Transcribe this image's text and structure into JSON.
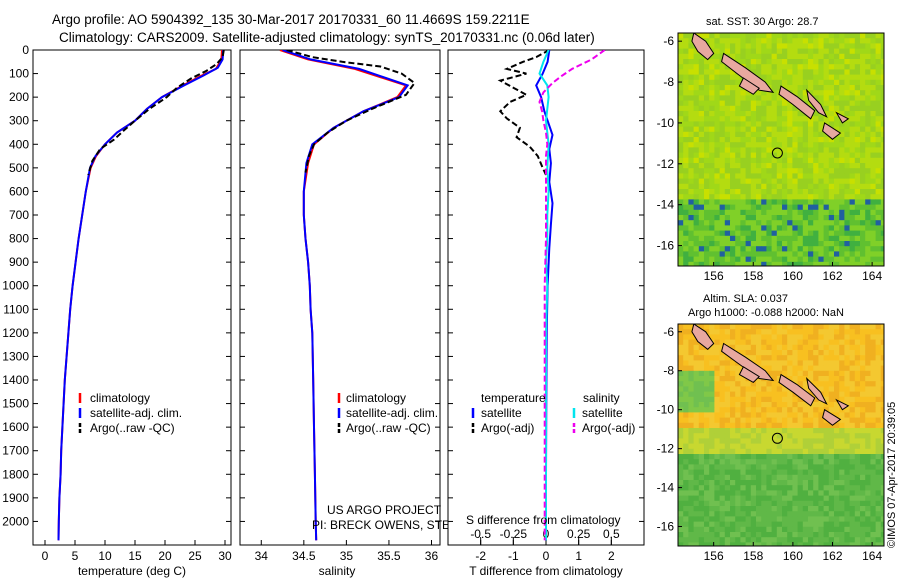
{
  "header": {
    "title_line1": "Argo profile: AO 5904392_135 30-Mar-2017 20170331_60 11.4669S 159.2211E",
    "title_line2": "Climatology: CARS2009. Satellite-adjusted climatology: synTS_20170331.nc (0.06d later)"
  },
  "colors": {
    "climatology": "#ff0000",
    "satellite": "#0000ff",
    "argo": "#000000",
    "sal_satellite": "#00e5ee",
    "sal_argo": "#ee00ee",
    "land": "#e8a8a0"
  },
  "chart_data": [
    {
      "type": "line",
      "id": "temperature",
      "xlabel": "temperature (deg C)",
      "ylabel": "",
      "xlim": [
        -2,
        31
      ],
      "ylim": [
        2100,
        0
      ],
      "xticks": [
        0,
        5,
        10,
        15,
        20,
        25,
        30
      ],
      "yticks": [
        0,
        100,
        200,
        300,
        400,
        500,
        600,
        700,
        800,
        900,
        1000,
        1100,
        1200,
        1300,
        1400,
        1500,
        1600,
        1700,
        1800,
        1900,
        2000
      ],
      "legend": [
        "climatology",
        "satellite-adj. clim.",
        "Argo(..raw -QC)"
      ],
      "series": [
        {
          "name": "climatology",
          "color": "#ff0000",
          "dash": false,
          "points": [
            [
              29.5,
              0
            ],
            [
              29.4,
              40
            ],
            [
              28.5,
              80
            ],
            [
              26,
              110
            ],
            [
              23,
              150
            ],
            [
              19.5,
              200
            ],
            [
              17,
              250
            ],
            [
              15,
              300
            ],
            [
              12,
              350
            ],
            [
              10,
              400
            ],
            [
              8.5,
              450
            ],
            [
              7.6,
              500
            ],
            [
              6.8,
              600
            ],
            [
              6.2,
              700
            ],
            [
              5.6,
              800
            ],
            [
              5.1,
              900
            ],
            [
              4.6,
              1000
            ],
            [
              4.2,
              1100
            ],
            [
              3.9,
              1200
            ],
            [
              3.6,
              1300
            ],
            [
              3.3,
              1400
            ],
            [
              3.1,
              1500
            ],
            [
              2.9,
              1600
            ],
            [
              2.7,
              1700
            ],
            [
              2.6,
              1800
            ],
            [
              2.4,
              1900
            ],
            [
              2.3,
              2000
            ],
            [
              2.25,
              2080
            ]
          ]
        },
        {
          "name": "satellite-adj. clim.",
          "color": "#0000ff",
          "dash": false,
          "points": [
            [
              29.7,
              0
            ],
            [
              29.6,
              40
            ],
            [
              28.8,
              75
            ],
            [
              26.3,
              110
            ],
            [
              23.2,
              150
            ],
            [
              19.5,
              200
            ],
            [
              17,
              250
            ],
            [
              15,
              300
            ],
            [
              12,
              350
            ],
            [
              10,
              400
            ],
            [
              8.4,
              450
            ],
            [
              7.5,
              500
            ],
            [
              6.8,
              600
            ],
            [
              6.2,
              700
            ],
            [
              5.6,
              800
            ],
            [
              5.1,
              900
            ],
            [
              4.6,
              1000
            ],
            [
              4.2,
              1100
            ],
            [
              3.9,
              1200
            ],
            [
              3.6,
              1300
            ],
            [
              3.3,
              1400
            ],
            [
              3.1,
              1500
            ],
            [
              2.9,
              1600
            ],
            [
              2.7,
              1700
            ],
            [
              2.6,
              1800
            ],
            [
              2.4,
              1900
            ],
            [
              2.3,
              2000
            ],
            [
              2.25,
              2080
            ]
          ]
        },
        {
          "name": "Argo(..raw -QC)",
          "color": "#000000",
          "dash": true,
          "points": [
            [
              29.8,
              0
            ],
            [
              29.6,
              30
            ],
            [
              28.6,
              60
            ],
            [
              26.8,
              90
            ],
            [
              24.4,
              120
            ],
            [
              22,
              160
            ],
            [
              20.3,
              200
            ],
            [
              17.4,
              250
            ],
            [
              15,
              300
            ],
            [
              13.2,
              340
            ],
            [
              11.5,
              380
            ],
            [
              9.2,
              420
            ],
            [
              7.9,
              470
            ],
            [
              7.2,
              530
            ]
          ]
        }
      ]
    },
    {
      "type": "line",
      "id": "salinity",
      "xlabel": "salinity",
      "ylabel": "",
      "xlim": [
        33.75,
        36.1
      ],
      "ylim": [
        2100,
        0
      ],
      "xticks": [
        34,
        34.5,
        35,
        35.5,
        36
      ],
      "legend": [
        "climatology",
        "satellite-adj. clim.",
        "Argo(..raw -QC)"
      ],
      "annotations": [
        "US ARGO PROJECT",
        "PI: BRECK OWENS, STEVE JAYNE, P.E. ROBBINS"
      ],
      "series": [
        {
          "name": "climatology",
          "color": "#ff0000",
          "dash": false,
          "points": [
            [
              34.22,
              0
            ],
            [
              34.55,
              40
            ],
            [
              35.1,
              80
            ],
            [
              35.7,
              150
            ],
            [
              35.6,
              200
            ],
            [
              35.2,
              260
            ],
            [
              34.85,
              330
            ],
            [
              34.62,
              400
            ],
            [
              34.55,
              480
            ],
            [
              34.5,
              600
            ],
            [
              34.5,
              700
            ],
            [
              34.52,
              800
            ],
            [
              34.55,
              900
            ],
            [
              34.57,
              1000
            ],
            [
              34.58,
              1100
            ],
            [
              34.6,
              1200
            ],
            [
              34.61,
              1400
            ],
            [
              34.62,
              1600
            ],
            [
              34.63,
              1800
            ],
            [
              34.64,
              2000
            ],
            [
              34.645,
              2080
            ]
          ]
        },
        {
          "name": "satellite-adj. clim.",
          "color": "#0000ff",
          "dash": false,
          "points": [
            [
              34.25,
              0
            ],
            [
              34.58,
              40
            ],
            [
              35.15,
              80
            ],
            [
              35.72,
              150
            ],
            [
              35.62,
              200
            ],
            [
              35.2,
              260
            ],
            [
              34.85,
              330
            ],
            [
              34.6,
              400
            ],
            [
              34.53,
              480
            ],
            [
              34.5,
              600
            ],
            [
              34.5,
              700
            ],
            [
              34.52,
              800
            ],
            [
              34.55,
              900
            ],
            [
              34.57,
              1000
            ],
            [
              34.58,
              1100
            ],
            [
              34.6,
              1200
            ],
            [
              34.61,
              1400
            ],
            [
              34.62,
              1600
            ],
            [
              34.63,
              1800
            ],
            [
              34.64,
              2000
            ],
            [
              34.645,
              2080
            ]
          ]
        },
        {
          "name": "Argo(..raw -QC)",
          "color": "#000000",
          "dash": true,
          "points": [
            [
              34.3,
              0
            ],
            [
              34.6,
              30
            ],
            [
              34.95,
              50
            ],
            [
              35.4,
              70
            ],
            [
              35.65,
              100
            ],
            [
              35.8,
              140
            ],
            [
              35.7,
              190
            ],
            [
              35.3,
              250
            ],
            [
              35.0,
              300
            ],
            [
              34.78,
              350
            ],
            [
              34.62,
              400
            ],
            [
              34.56,
              450
            ],
            [
              34.52,
              520
            ]
          ]
        }
      ]
    },
    {
      "type": "line",
      "id": "difference",
      "xlabel": "T difference from climatology",
      "top_xlabel": "S difference from climatology",
      "xlim": [
        -3,
        3
      ],
      "top_xlim": [
        -0.75,
        0.75
      ],
      "ylim": [
        2100,
        0
      ],
      "xticks": [
        -2,
        -1,
        0,
        1,
        2
      ],
      "top_xticks": [
        -0.5,
        -0.25,
        0,
        0.25,
        0.5
      ],
      "legend_titles": [
        "temperature",
        "salinity"
      ],
      "legend": [
        "satellite",
        "Argo(-adj)",
        "satellite",
        "Argo(-adj)"
      ],
      "series": [
        {
          "name": "satellite",
          "group": "temperature",
          "color": "#0000ff",
          "dash": false,
          "scale": "T",
          "points": [
            [
              0.1,
              0
            ],
            [
              0.05,
              50
            ],
            [
              -0.1,
              100
            ],
            [
              -0.3,
              150
            ],
            [
              -0.15,
              200
            ],
            [
              -0.05,
              260
            ],
            [
              0.05,
              300
            ],
            [
              0.2,
              360
            ],
            [
              0.1,
              420
            ],
            [
              0.15,
              480
            ],
            [
              0.1,
              560
            ],
            [
              0.2,
              650
            ],
            [
              0.15,
              740
            ],
            [
              0.1,
              840
            ],
            [
              0.05,
              1000
            ],
            [
              0.02,
              1200
            ],
            [
              0.01,
              1500
            ],
            [
              0,
              1800
            ],
            [
              0,
              2080
            ]
          ]
        },
        {
          "name": "Argo(-adj)",
          "group": "temperature",
          "color": "#000000",
          "dash": true,
          "scale": "T",
          "points": [
            [
              0.1,
              0
            ],
            [
              -0.3,
              30
            ],
            [
              -0.7,
              50
            ],
            [
              -1.2,
              80
            ],
            [
              -0.6,
              100
            ],
            [
              -1.4,
              130
            ],
            [
              -1.0,
              160
            ],
            [
              -0.6,
              190
            ],
            [
              -1.1,
              220
            ],
            [
              -1.4,
              260
            ],
            [
              -1.2,
              290
            ],
            [
              -0.8,
              330
            ],
            [
              -0.9,
              370
            ],
            [
              -0.5,
              410
            ],
            [
              -0.25,
              450
            ],
            [
              -0.1,
              500
            ],
            [
              0,
              530
            ]
          ]
        },
        {
          "name": "satellite",
          "group": "salinity",
          "color": "#00e5ee",
          "dash": false,
          "scale": "S",
          "points": [
            [
              0.02,
              0
            ],
            [
              -0.02,
              50
            ],
            [
              -0.05,
              100
            ],
            [
              0.01,
              150
            ],
            [
              0.02,
              200
            ],
            [
              0,
              300
            ],
            [
              0.02,
              400
            ],
            [
              0.01,
              500
            ],
            [
              0.02,
              600
            ],
            [
              0.01,
              700
            ],
            [
              0.01,
              800
            ],
            [
              0,
              900
            ],
            [
              0.01,
              1000
            ],
            [
              0,
              1200
            ],
            [
              0,
              1500
            ],
            [
              0,
              1800
            ],
            [
              0,
              2080
            ]
          ]
        },
        {
          "name": "Argo(-adj)",
          "group": "salinity",
          "color": "#ee00ee",
          "dash": true,
          "scale": "S",
          "points": [
            [
              0.45,
              0
            ],
            [
              0.35,
              40
            ],
            [
              0.2,
              80
            ],
            [
              0.12,
              110
            ],
            [
              0.05,
              140
            ],
            [
              -0.02,
              180
            ],
            [
              -0.05,
              220
            ],
            [
              -0.03,
              260
            ],
            [
              -0.02,
              300
            ],
            [
              0,
              350
            ],
            [
              0.01,
              400
            ],
            [
              0,
              450
            ],
            [
              0,
              500
            ],
            [
              0,
              600
            ],
            [
              0,
              800
            ],
            [
              -0.01,
              1000
            ],
            [
              -0.01,
              1200
            ],
            [
              -0.01,
              1500
            ],
            [
              -0.01,
              1800
            ],
            [
              -0.01,
              2080
            ]
          ]
        }
      ]
    },
    {
      "type": "heatmap",
      "id": "sst_map",
      "title": "sat. SST: 30 Argo: 28.7",
      "xticks": [
        156,
        158,
        160,
        162,
        164
      ],
      "yticks": [
        -6,
        -8,
        -10,
        -12,
        -14,
        -16
      ],
      "xlim": [
        154.2,
        164.6
      ],
      "ylim": [
        -17,
        -5.6
      ],
      "marker": [
        159.22,
        -11.47
      ]
    },
    {
      "type": "heatmap",
      "id": "sla_map",
      "title_line1": "Altim. SLA: 0.037",
      "title_line2": "Argo h1000: -0.088 h2000: NaN",
      "xticks": [
        156,
        158,
        160,
        162,
        164
      ],
      "yticks": [
        -6,
        -8,
        -10,
        -12,
        -14,
        -16
      ],
      "xlim": [
        154.2,
        164.6
      ],
      "ylim": [
        -17,
        -5.6
      ],
      "marker": [
        159.22,
        -11.47
      ]
    }
  ],
  "footer": {
    "project": "US ARGO PROJECT",
    "pi": "PI: BRECK OWENS, STEVE JAYNE, P.E. ROBBINS",
    "credit": "©IMOS 07-Apr-2017 20:39:05"
  }
}
